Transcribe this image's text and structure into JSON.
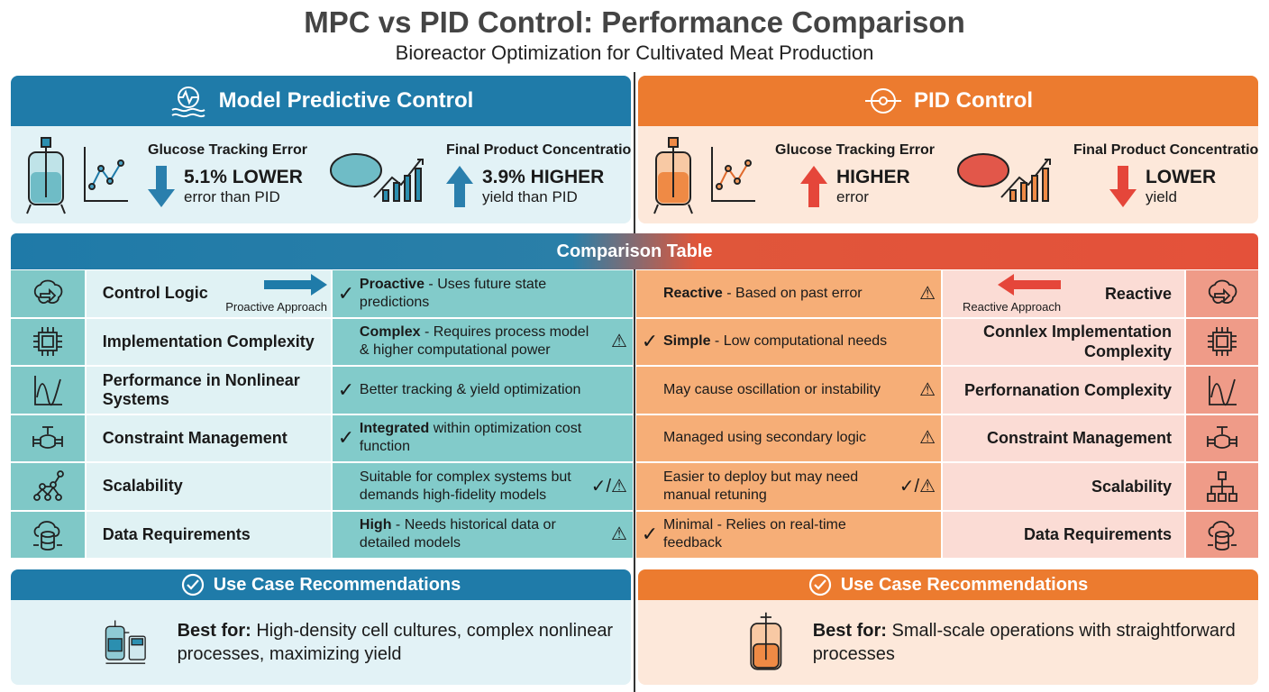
{
  "header": {
    "title": "MPC vs PID Control: Performance Comparison",
    "subtitle": "Bioreactor Optimization for Cultivated Meat Production"
  },
  "colors": {
    "mpc_blue": "#1f7ba9",
    "pid_orange": "#ec7b2f",
    "mpc_light": "#e2f2f6",
    "pid_light": "#fde8da",
    "teal": "#80c9c8",
    "salmon": "#f6ae77",
    "red_arrow": "#e5463a"
  },
  "mpc": {
    "title": "Model Predictive Control",
    "icon": "gear-wave-icon",
    "glucose": {
      "title": "Glucose Tracking Error",
      "big": "5.1% LOWER",
      "small": "error than PID",
      "arrow": "down"
    },
    "product": {
      "title": "Final Product Concentration",
      "big": "3.9% HIGHER",
      "small": "yield than PID",
      "arrow": "up"
    }
  },
  "pid": {
    "title": "PID Control",
    "icon": "gear-slider-icon",
    "glucose": {
      "title": "Glucose Tracking Error",
      "big": "HIGHER",
      "small": "error",
      "arrow": "up"
    },
    "product": {
      "title": "Final Product Concentration",
      "big": "LOWER",
      "small": "yield",
      "arrow": "down"
    }
  },
  "table": {
    "title": "Comparison Table",
    "mpc_arrow_label": "Proactive Approach",
    "pid_arrow_label": "Reactive Approach",
    "rows": [
      {
        "mpc_label": "Control Logic",
        "mpc_bold": "Proactive",
        "mpc_text": " - Uses future state predictions",
        "mpc_mark": "check",
        "pid_bold": "Reactive",
        "pid_text": " - Based on past error",
        "pid_mark": "warn",
        "pid_label": "Reactive",
        "icon": "brain-icon"
      },
      {
        "mpc_label": "Implementation Complexity",
        "mpc_bold": "Complex",
        "mpc_text": " - Requires process model & higher computational power",
        "mpc_mark": "warn",
        "pid_bold": "Simple",
        "pid_text": " - Low computational needs",
        "pid_mark": "check",
        "pid_label": "Connlex Implementation Complexity",
        "icon": "chip-icon"
      },
      {
        "mpc_label": "Performance in Nonlinear Systems",
        "mpc_bold": "",
        "mpc_text": "Better tracking & yield optimization",
        "mpc_mark": "check",
        "pid_bold": "",
        "pid_text": "May cause oscillation or instability",
        "pid_mark": "warn",
        "pid_label": "Perfornanation Complexity",
        "icon": "wave-chart-icon"
      },
      {
        "mpc_label": "Constraint Management",
        "mpc_bold": "Integrated",
        "mpc_text": " within optimization cost function",
        "mpc_mark": "check",
        "pid_bold": "",
        "pid_text": "Managed using secondary logic",
        "pid_mark": "warn",
        "pid_label": "Constraint Management",
        "icon": "valve-icon"
      },
      {
        "mpc_label": "Scalability",
        "mpc_bold": "",
        "mpc_text": "Suitable for complex systems but demands high-fidelity models",
        "mpc_mark": "both",
        "pid_bold": "",
        "pid_text": "Easier to deploy but may need manual retuning",
        "pid_mark": "both",
        "pid_label": "Scalability",
        "icon": "network-icon"
      },
      {
        "mpc_label": "Data Requirements",
        "mpc_bold": "High",
        "mpc_text": " - Needs historical data or detailed models",
        "mpc_mark": "warn",
        "pid_bold": "",
        "pid_text": "Minimal - Relies on real-time feedback",
        "pid_mark": "check",
        "pid_label": "Data Requirements",
        "icon": "cloud-database-icon"
      }
    ]
  },
  "usecase": {
    "title": "Use Case Recommendations",
    "best_for": "Best for:",
    "mpc_text": " High-density cell cultures, complex nonlinear processes, maximizing yield",
    "pid_text": " Small-scale operations with straightforward processes"
  }
}
